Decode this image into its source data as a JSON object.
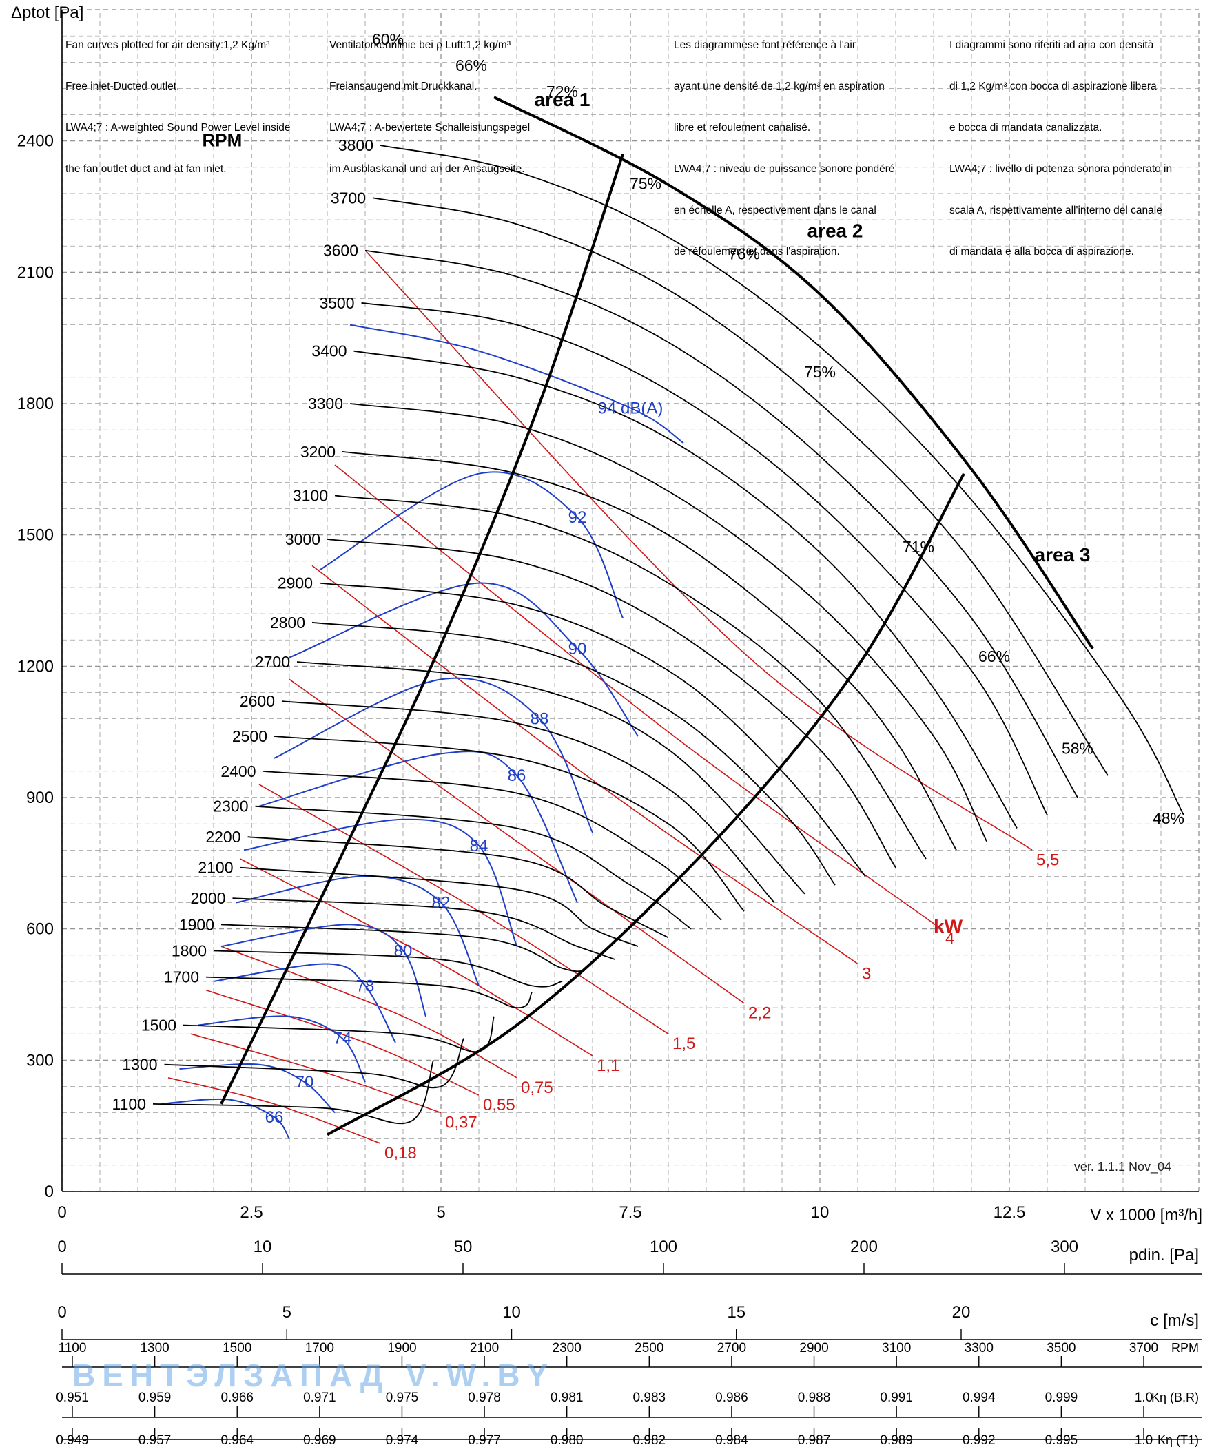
{
  "notes": {
    "en": [
      "Fan curves plotted for air density:1,2 Kg/m³",
      "Free inlet-Ducted outlet.",
      "LWA4;7 : A-weighted Sound Power Level inside",
      "the fan outlet duct and at fan inlet."
    ],
    "de": [
      "Ventilatorkennlinie bei ρ Luft:1,2 kg/m³",
      "Freiansaugend mit Druckkanal.",
      "LWA4;7 : A-bewertete Schalleistungspegel",
      "im Ausblaskanal und an der Ansaugseite."
    ],
    "fr": [
      "Les diagrammese font référence à l'air",
      "ayant une densité de 1,2 kg/m³ en aspiration",
      "libre et refoulement canalisé.",
      "LWA4;7 : niveau de puissance sonore pondéré",
      "en échelle A, respectivement dans le canal",
      "de réfoulement et dans l'aspiration."
    ],
    "it": [
      "I diagrammi sono riferiti ad aria con densità",
      "di 1,2 Kg/m³ con bocca di aspirazione libera",
      "e bocca di mandata canalizzata.",
      "LWA4;7 : livello di potenza sonora ponderato in",
      "scala A, rispettivamente all'interno del canale",
      "di mandata e alla bocca di aspirazione."
    ]
  },
  "version": "ver. 1.1.1 Nov_04",
  "watermark": "ВЕНТЭЛЗАПАД  V.W.BY",
  "colors": {
    "sound": "#1f3fc8",
    "power": "#d01818",
    "curve": "#000000",
    "grid": "#888888"
  },
  "chart_data": {
    "type": "line",
    "title": "",
    "xlabel": "V x 1000 [m³/h]",
    "ylabel": "Δptot [Pa]",
    "xlim": [
      0,
      15
    ],
    "ylim": [
      0,
      2700
    ],
    "x_ticks": [
      "0",
      "2.5",
      "5",
      "7.5",
      "10",
      "12.5"
    ],
    "y_ticks": [
      "0",
      "300",
      "600",
      "900",
      "1200",
      "1500",
      "1800",
      "2100",
      "2400"
    ],
    "grid": true,
    "rpm_title": "RPM",
    "rpm_curves": [
      {
        "rpm": 3800,
        "label": "3800",
        "points": [
          [
            4.2,
            2390
          ],
          [
            6.0,
            2330
          ],
          [
            8.0,
            2180
          ],
          [
            10.0,
            1930
          ],
          [
            12.0,
            1580
          ],
          [
            14.0,
            1120
          ],
          [
            14.8,
            860
          ]
        ]
      },
      {
        "rpm": 3700,
        "label": "3700",
        "points": [
          [
            4.1,
            2270
          ],
          [
            6.0,
            2210
          ],
          [
            8.0,
            2060
          ],
          [
            10.0,
            1800
          ],
          [
            12.0,
            1440
          ],
          [
            13.8,
            950
          ]
        ]
      },
      {
        "rpm": 3600,
        "label": "3600",
        "points": [
          [
            4.0,
            2150
          ],
          [
            6.0,
            2090
          ],
          [
            8.0,
            1940
          ],
          [
            10.0,
            1680
          ],
          [
            12.0,
            1310
          ],
          [
            13.4,
            900
          ]
        ]
      },
      {
        "rpm": 3500,
        "label": "3500",
        "points": [
          [
            3.95,
            2030
          ],
          [
            6.0,
            1980
          ],
          [
            8.0,
            1830
          ],
          [
            10.0,
            1570
          ],
          [
            12.0,
            1190
          ],
          [
            13.0,
            860
          ]
        ]
      },
      {
        "rpm": 3400,
        "label": "3400",
        "points": [
          [
            3.85,
            1920
          ],
          [
            6.0,
            1860
          ],
          [
            8.0,
            1720
          ],
          [
            10.0,
            1460
          ],
          [
            11.5,
            1150
          ],
          [
            12.6,
            830
          ]
        ]
      },
      {
        "rpm": 3300,
        "label": "3300",
        "points": [
          [
            3.8,
            1800
          ],
          [
            6.0,
            1750
          ],
          [
            8.0,
            1600
          ],
          [
            10.0,
            1340
          ],
          [
            11.5,
            1040
          ],
          [
            12.2,
            800
          ]
        ]
      },
      {
        "rpm": 3200,
        "label": "3200",
        "points": [
          [
            3.7,
            1690
          ],
          [
            6.0,
            1640
          ],
          [
            8.0,
            1500
          ],
          [
            10.0,
            1230
          ],
          [
            11.0,
            1030
          ],
          [
            11.8,
            780
          ]
        ]
      },
      {
        "rpm": 3100,
        "label": "3100",
        "points": [
          [
            3.6,
            1590
          ],
          [
            6.0,
            1540
          ],
          [
            8.0,
            1390
          ],
          [
            10.0,
            1120
          ],
          [
            11.4,
            760
          ]
        ]
      },
      {
        "rpm": 3000,
        "label": "3000",
        "points": [
          [
            3.5,
            1490
          ],
          [
            6.0,
            1440
          ],
          [
            8.0,
            1290
          ],
          [
            10.0,
            1010
          ],
          [
            11.0,
            740
          ]
        ]
      },
      {
        "rpm": 2900,
        "label": "2900",
        "points": [
          [
            3.4,
            1390
          ],
          [
            6.0,
            1340
          ],
          [
            8.0,
            1190
          ],
          [
            9.5,
            960
          ],
          [
            10.6,
            720
          ]
        ]
      },
      {
        "rpm": 2800,
        "label": "2800",
        "points": [
          [
            3.3,
            1300
          ],
          [
            6.0,
            1250
          ],
          [
            8.0,
            1100
          ],
          [
            9.5,
            870
          ],
          [
            10.2,
            700
          ]
        ]
      },
      {
        "rpm": 2700,
        "label": "2700",
        "points": [
          [
            3.1,
            1210
          ],
          [
            6.0,
            1160
          ],
          [
            8.0,
            1010
          ],
          [
            9.8,
            680
          ]
        ]
      },
      {
        "rpm": 2600,
        "label": "2600",
        "points": [
          [
            2.9,
            1120
          ],
          [
            6.0,
            1070
          ],
          [
            8.0,
            920
          ],
          [
            9.4,
            660
          ]
        ]
      },
      {
        "rpm": 2500,
        "label": "2500",
        "points": [
          [
            2.8,
            1040
          ],
          [
            6.0,
            990
          ],
          [
            8.0,
            840
          ],
          [
            9.0,
            640
          ]
        ]
      },
      {
        "rpm": 2400,
        "label": "2400",
        "points": [
          [
            2.65,
            960
          ],
          [
            6.0,
            910
          ],
          [
            7.8,
            760
          ],
          [
            8.7,
            620
          ]
        ]
      },
      {
        "rpm": 2300,
        "label": "2300",
        "points": [
          [
            2.55,
            880
          ],
          [
            6.0,
            830
          ],
          [
            7.5,
            700
          ],
          [
            8.3,
            600
          ]
        ]
      },
      {
        "rpm": 2200,
        "label": "2200",
        "points": [
          [
            2.45,
            810
          ],
          [
            6.0,
            760
          ],
          [
            7.2,
            650
          ],
          [
            8.0,
            580
          ]
        ]
      },
      {
        "rpm": 2100,
        "label": "2100",
        "points": [
          [
            2.35,
            740
          ],
          [
            6.0,
            690
          ],
          [
            7.0,
            600
          ],
          [
            7.6,
            560
          ]
        ]
      },
      {
        "rpm": 2000,
        "label": "2000",
        "points": [
          [
            2.25,
            670
          ],
          [
            5.5,
            640
          ],
          [
            6.8,
            560
          ],
          [
            7.3,
            530
          ]
        ]
      },
      {
        "rpm": 1900,
        "label": "1900",
        "points": [
          [
            2.1,
            610
          ],
          [
            5.5,
            580
          ],
          [
            6.6,
            510
          ],
          [
            6.9,
            505
          ]
        ]
      },
      {
        "rpm": 1800,
        "label": "1800",
        "points": [
          [
            2.0,
            550
          ],
          [
            5.0,
            530
          ],
          [
            6.2,
            470
          ],
          [
            6.6,
            480
          ]
        ]
      },
      {
        "rpm": 1700,
        "label": "1700",
        "points": [
          [
            1.9,
            490
          ],
          [
            5.0,
            470
          ],
          [
            6.0,
            420
          ],
          [
            6.2,
            455
          ]
        ]
      },
      {
        "rpm": 1500,
        "label": "1500",
        "points": [
          [
            1.6,
            380
          ],
          [
            4.5,
            360
          ],
          [
            5.5,
            320
          ],
          [
            5.7,
            400
          ]
        ]
      },
      {
        "rpm": 1300,
        "label": "1300",
        "points": [
          [
            1.35,
            290
          ],
          [
            4.0,
            270
          ],
          [
            5.0,
            240
          ],
          [
            5.3,
            350
          ]
        ]
      },
      {
        "rpm": 1100,
        "label": "1100",
        "points": [
          [
            1.2,
            200
          ],
          [
            3.5,
            190
          ],
          [
            4.6,
            160
          ],
          [
            4.9,
            300
          ]
        ]
      }
    ],
    "efficiency_labels": [
      "60%",
      "66%",
      "72%",
      "75%",
      "76%",
      "75%",
      "71%",
      "66%",
      "58%",
      "48%"
    ],
    "areas": [
      "area 1",
      "area 2",
      "area 3"
    ],
    "sound_power": {
      "unit_label": "dB(A)",
      "levels": [
        {
          "label": "94",
          "points": [
            [
              3.8,
              1980
            ],
            [
              5.5,
              1920
            ],
            [
              7.5,
              1790
            ],
            [
              8.2,
              1710
            ]
          ]
        },
        {
          "label": "92",
          "points": [
            [
              3.4,
              1420
            ],
            [
              5.5,
              1640
            ],
            [
              6.8,
              1540
            ],
            [
              7.4,
              1310
            ]
          ]
        },
        {
          "label": "90",
          "points": [
            [
              3.0,
              1220
            ],
            [
              5.5,
              1390
            ],
            [
              6.8,
              1240
            ],
            [
              7.6,
              1040
            ]
          ]
        },
        {
          "label": "88",
          "points": [
            [
              2.8,
              990
            ],
            [
              5.0,
              1170
            ],
            [
              6.3,
              1080
            ],
            [
              7.0,
              820
            ]
          ]
        },
        {
          "label": "86",
          "points": [
            [
              2.6,
              880
            ],
            [
              5.0,
              1000
            ],
            [
              6.0,
              950
            ],
            [
              6.8,
              660
            ]
          ]
        },
        {
          "label": "84",
          "points": [
            [
              2.4,
              780
            ],
            [
              4.5,
              850
            ],
            [
              5.5,
              790
            ],
            [
              6.0,
              560
            ]
          ]
        },
        {
          "label": "82",
          "points": [
            [
              2.3,
              660
            ],
            [
              4.0,
              720
            ],
            [
              5.0,
              660
            ],
            [
              5.5,
              470
            ]
          ]
        },
        {
          "label": "80",
          "points": [
            [
              2.1,
              560
            ],
            [
              3.8,
              610
            ],
            [
              4.5,
              550
            ],
            [
              4.8,
              400
            ]
          ]
        },
        {
          "label": "78",
          "points": [
            [
              2.0,
              480
            ],
            [
              3.5,
              520
            ],
            [
              4.0,
              470
            ],
            [
              4.4,
              340
            ]
          ]
        },
        {
          "label": "74",
          "points": [
            [
              1.8,
              380
            ],
            [
              3.0,
              400
            ],
            [
              3.7,
              350
            ],
            [
              4.0,
              250
            ]
          ]
        },
        {
          "label": "70",
          "points": [
            [
              1.55,
              280
            ],
            [
              2.6,
              290
            ],
            [
              3.2,
              250
            ],
            [
              3.6,
              180
            ]
          ]
        },
        {
          "label": "66",
          "points": [
            [
              1.3,
              200
            ],
            [
              2.2,
              210
            ],
            [
              2.8,
              170
            ],
            [
              3.0,
              120
            ]
          ]
        }
      ]
    },
    "absorbed_power": {
      "unit_label": "kW",
      "levels": [
        {
          "label": "0,18",
          "points": [
            [
              1.4,
              260
            ],
            [
              2.8,
              200
            ],
            [
              4.2,
              110
            ]
          ]
        },
        {
          "label": "0,37",
          "points": [
            [
              1.7,
              360
            ],
            [
              3.5,
              270
            ],
            [
              5.0,
              180
            ]
          ]
        },
        {
          "label": "0,55",
          "points": [
            [
              1.9,
              460
            ],
            [
              4.0,
              340
            ],
            [
              5.5,
              220
            ]
          ]
        },
        {
          "label": "0,75",
          "points": [
            [
              2.1,
              560
            ],
            [
              4.5,
              400
            ],
            [
              6.0,
              260
            ]
          ]
        },
        {
          "label": "1,1",
          "points": [
            [
              2.35,
              760
            ],
            [
              5.0,
              520
            ],
            [
              7.0,
              310
            ]
          ]
        },
        {
          "label": "1,5",
          "points": [
            [
              2.6,
              930
            ],
            [
              5.5,
              640
            ],
            [
              8.0,
              360
            ]
          ]
        },
        {
          "label": "2,2",
          "points": [
            [
              3.0,
              1170
            ],
            [
              6.0,
              800
            ],
            [
              9.0,
              430
            ]
          ]
        },
        {
          "label": "3",
          "points": [
            [
              3.3,
              1430
            ],
            [
              7.0,
              940
            ],
            [
              10.5,
              520
            ]
          ]
        },
        {
          "label": "4",
          "points": [
            [
              3.6,
              1660
            ],
            [
              8.0,
              1050
            ],
            [
              11.6,
              600
            ]
          ]
        },
        {
          "label": "5,5",
          "points": [
            [
              4.0,
              2150
            ],
            [
              9.0,
              1230
            ],
            [
              12.8,
              780
            ]
          ]
        }
      ]
    }
  },
  "scales": {
    "pdin": {
      "label": "pdin. [Pa]",
      "ticks": [
        "0",
        "10",
        "50",
        "100",
        "200",
        "300"
      ]
    },
    "c": {
      "label": "c [m/s]",
      "ticks": [
        "0",
        "5",
        "10",
        "15",
        "20"
      ]
    },
    "rpm": {
      "label": "RPM",
      "ticks": [
        "1100",
        "1300",
        "1500",
        "1700",
        "1900",
        "2100",
        "2300",
        "2500",
        "2700",
        "2900",
        "3100",
        "3300",
        "3500",
        "3700"
      ]
    },
    "keta_br": {
      "label": "Kη (B,R)",
      "ticks": [
        "0.951",
        "0.959",
        "0.966",
        "0.971",
        "0.975",
        "0.978",
        "0.981",
        "0.983",
        "0.986",
        "0.988",
        "0.991",
        "0.994",
        "0.999",
        "1.0"
      ]
    },
    "keta_t1": {
      "label": "Kη (T1)",
      "ticks": [
        "0.949",
        "0.957",
        "0.964",
        "0.969",
        "0.974",
        "0.977",
        "0.980",
        "0.982",
        "0.984",
        "0.987",
        "0.989",
        "0.992",
        "0.995",
        "1.0"
      ]
    }
  }
}
